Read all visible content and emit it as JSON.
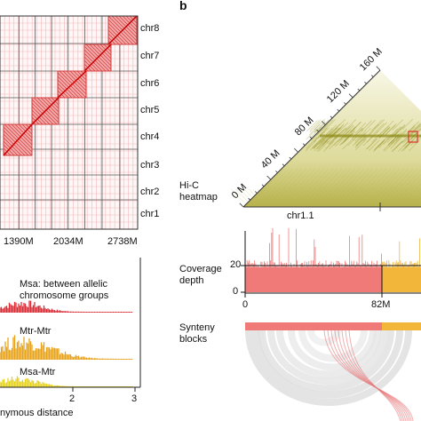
{
  "panel_b_letter": "b",
  "left_heatmap": {
    "chromosomes": [
      "chr8",
      "chr7",
      "chr6",
      "chr5",
      "chr4",
      "chr3",
      "chr2",
      "chr1"
    ],
    "x_ticks": [
      "1390M",
      "2034M",
      "2738M"
    ]
  },
  "left_ks": {
    "labels": [
      "Msa: between allelic\nchromosome groups",
      "Mtr-Mtr",
      "Msa-Mtr"
    ],
    "x_ticks": [
      "2",
      "3"
    ],
    "x_label": "nymous distance",
    "colors": [
      "#d9303a",
      "#e8a31c",
      "#e7d21b"
    ]
  },
  "hic": {
    "label": "Hi-C\nheatmap",
    "ticks": [
      "0 M",
      "40 M",
      "80 M",
      "120 M",
      "160 M"
    ],
    "chrom_label": "chr1.1",
    "color": "#9a9a10"
  },
  "coverage": {
    "label": "Coverage\ndepth",
    "y_ticks": [
      "0",
      "20"
    ],
    "x_ticks": [
      "0",
      "82M"
    ],
    "colors": [
      "#f07a78",
      "#f2b63a"
    ]
  },
  "synteny": {
    "label": "Synteny\nblocks"
  }
}
